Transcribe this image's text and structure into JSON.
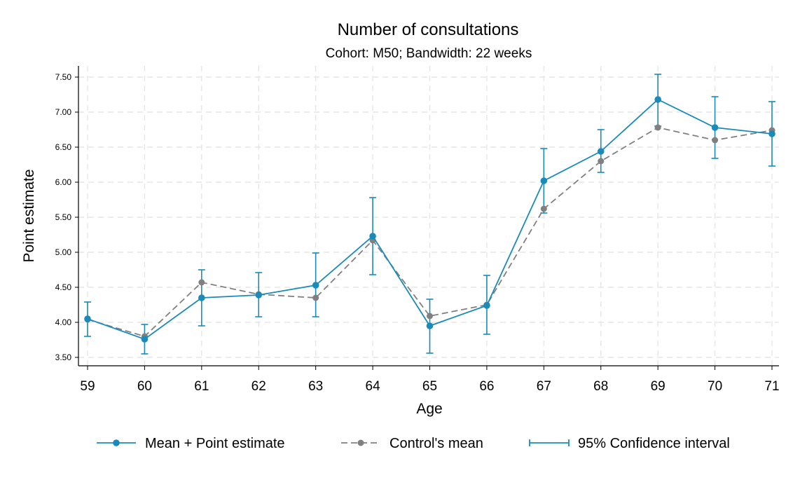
{
  "colors": {
    "treatment": "#1a8bb8",
    "control": "#808080",
    "grid": "#e6e6e6"
  },
  "chart_data": {
    "type": "line",
    "title": "Number of consultations",
    "subtitle": "Cohort: M50; Bandwidth: 22 weeks",
    "xlabel": "Age",
    "ylabel": "Point estimate",
    "x": [
      59,
      60,
      61,
      62,
      63,
      64,
      65,
      66,
      67,
      68,
      69,
      70,
      71
    ],
    "x_ticks": [
      "59",
      "60",
      "61",
      "62",
      "63",
      "64",
      "65",
      "66",
      "67",
      "68",
      "69",
      "70",
      "71"
    ],
    "y_ticks": [
      "3.50",
      "4.00",
      "4.50",
      "5.00",
      "5.50",
      "6.00",
      "6.50",
      "7.00",
      "7.50"
    ],
    "ylim": [
      3.5,
      7.5
    ],
    "grid": true,
    "legend_position": "bottom",
    "series": [
      {
        "name": "Mean + Point estimate",
        "values": [
          4.05,
          3.76,
          4.35,
          4.39,
          4.53,
          5.23,
          3.95,
          4.24,
          6.02,
          6.44,
          7.18,
          6.78,
          6.69
        ],
        "ci_lower": [
          3.8,
          3.55,
          3.95,
          4.08,
          4.08,
          4.68,
          3.56,
          3.83,
          5.56,
          6.14,
          6.8,
          6.34,
          6.23
        ],
        "ci_upper": [
          4.29,
          3.97,
          4.75,
          4.71,
          4.99,
          5.78,
          4.33,
          4.67,
          6.48,
          6.75,
          7.54,
          7.22,
          7.15
        ]
      },
      {
        "name": "Control's mean",
        "values": [
          4.04,
          3.8,
          4.57,
          4.4,
          4.35,
          5.17,
          4.09,
          4.25,
          5.62,
          6.3,
          6.78,
          6.6,
          6.74
        ]
      }
    ],
    "legend": [
      "Mean + Point estimate",
      "Control's mean",
      "95% Confidence interval"
    ]
  }
}
